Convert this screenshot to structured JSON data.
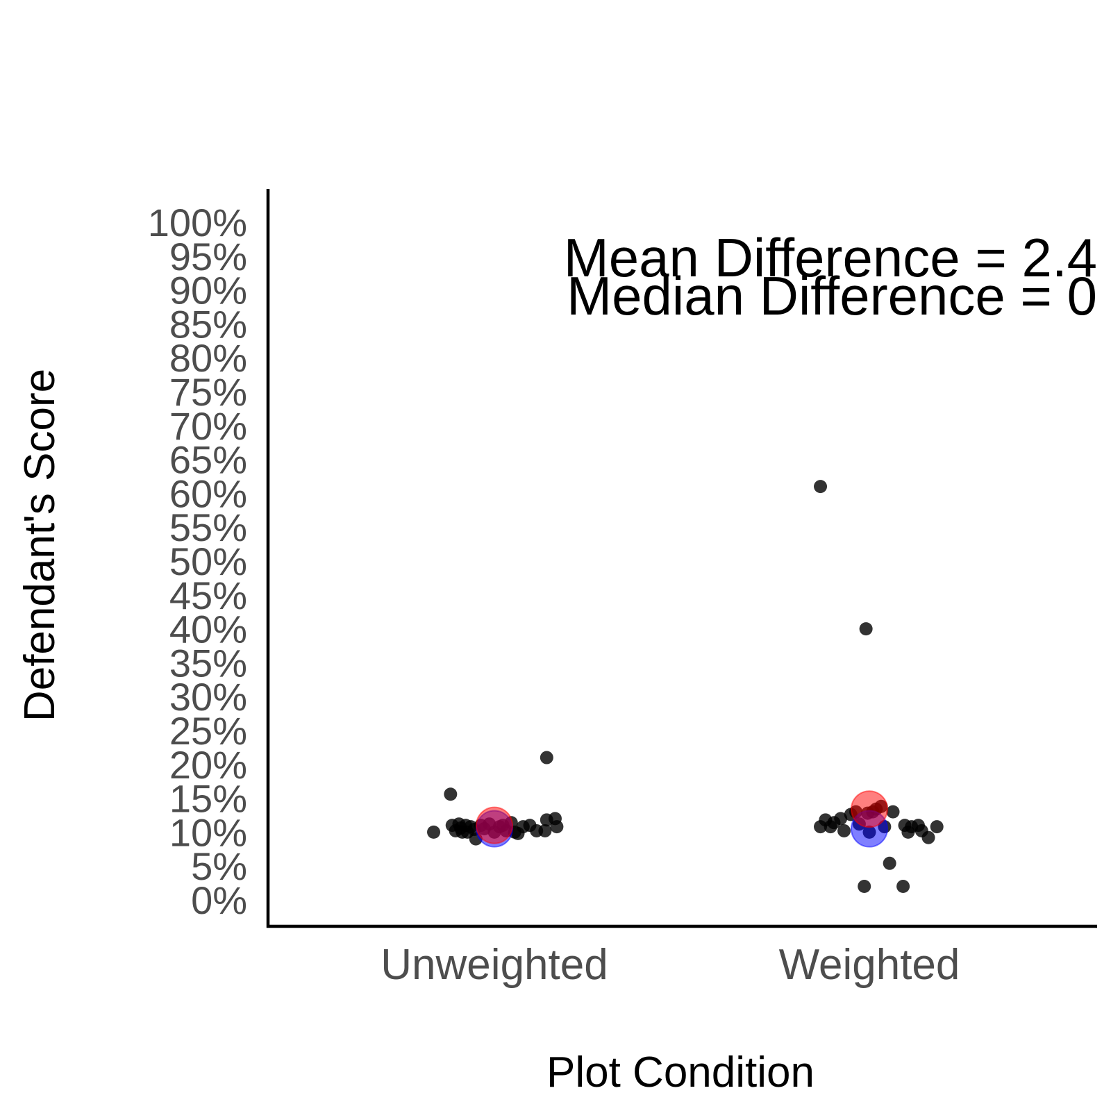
{
  "chart_data": {
    "type": "scatter",
    "title": "",
    "xlabel": "Plot Condition",
    "ylabel": "Defendant's Score",
    "categories": [
      "Unweighted",
      "Weighted"
    ],
    "ylim": [
      0,
      100
    ],
    "y_ticks": [
      0,
      5,
      10,
      15,
      20,
      25,
      30,
      35,
      40,
      45,
      50,
      55,
      60,
      65,
      70,
      75,
      80,
      85,
      90,
      95,
      100
    ],
    "y_tick_suffix": "%",
    "grid": false,
    "legend": "none",
    "points": [
      {
        "category": "Unweighted",
        "jitter": -0.36,
        "y": 10.0
      },
      {
        "category": "Unweighted",
        "jitter": -0.26,
        "y": 15.6
      },
      {
        "category": "Unweighted",
        "jitter": -0.25,
        "y": 11.0
      },
      {
        "category": "Unweighted",
        "jitter": -0.23,
        "y": 10.2
      },
      {
        "category": "Unweighted",
        "jitter": -0.21,
        "y": 11.2
      },
      {
        "category": "Unweighted",
        "jitter": -0.2,
        "y": 10.6
      },
      {
        "category": "Unweighted",
        "jitter": -0.19,
        "y": 10.0
      },
      {
        "category": "Unweighted",
        "jitter": -0.17,
        "y": 11.0
      },
      {
        "category": "Unweighted",
        "jitter": -0.16,
        "y": 10.0
      },
      {
        "category": "Unweighted",
        "jitter": -0.14,
        "y": 10.8
      },
      {
        "category": "Unweighted",
        "jitter": -0.12,
        "y": 10.4
      },
      {
        "category": "Unweighted",
        "jitter": -0.11,
        "y": 9.0
      },
      {
        "category": "Unweighted",
        "jitter": -0.08,
        "y": 11.0
      },
      {
        "category": "Unweighted",
        "jitter": -0.06,
        "y": 10.5
      },
      {
        "category": "Unweighted",
        "jitter": -0.03,
        "y": 11.2
      },
      {
        "category": "Unweighted",
        "jitter": 0.0,
        "y": 10.0
      },
      {
        "category": "Unweighted",
        "jitter": 0.03,
        "y": 10.8
      },
      {
        "category": "Unweighted",
        "jitter": 0.05,
        "y": 11.0
      },
      {
        "category": "Unweighted",
        "jitter": 0.07,
        "y": 10.2
      },
      {
        "category": "Unweighted",
        "jitter": 0.1,
        "y": 11.4
      },
      {
        "category": "Unweighted",
        "jitter": 0.12,
        "y": 10.0
      },
      {
        "category": "Unweighted",
        "jitter": 0.14,
        "y": 9.8
      },
      {
        "category": "Unweighted",
        "jitter": 0.17,
        "y": 10.8
      },
      {
        "category": "Unweighted",
        "jitter": 0.21,
        "y": 11.0
      },
      {
        "category": "Unweighted",
        "jitter": 0.25,
        "y": 10.2
      },
      {
        "category": "Unweighted",
        "jitter": 0.3,
        "y": 10.2
      },
      {
        "category": "Unweighted",
        "jitter": 0.31,
        "y": 21.0
      },
      {
        "category": "Unweighted",
        "jitter": 0.31,
        "y": 11.8
      },
      {
        "category": "Unweighted",
        "jitter": 0.36,
        "y": 12.0
      },
      {
        "category": "Unweighted",
        "jitter": 0.37,
        "y": 10.8
      },
      {
        "category": "Weighted",
        "jitter": -0.29,
        "y": 61.0
      },
      {
        "category": "Weighted",
        "jitter": -0.29,
        "y": 10.8
      },
      {
        "category": "Weighted",
        "jitter": -0.26,
        "y": 11.8
      },
      {
        "category": "Weighted",
        "jitter": -0.23,
        "y": 10.8
      },
      {
        "category": "Weighted",
        "jitter": -0.21,
        "y": 11.4
      },
      {
        "category": "Weighted",
        "jitter": -0.17,
        "y": 12.0
      },
      {
        "category": "Weighted",
        "jitter": -0.15,
        "y": 10.2
      },
      {
        "category": "Weighted",
        "jitter": -0.11,
        "y": 12.6
      },
      {
        "category": "Weighted",
        "jitter": -0.08,
        "y": 13.0
      },
      {
        "category": "Weighted",
        "jitter": -0.06,
        "y": 11.2
      },
      {
        "category": "Weighted",
        "jitter": -0.03,
        "y": 2.0
      },
      {
        "category": "Weighted",
        "jitter": -0.02,
        "y": 40.0
      },
      {
        "category": "Weighted",
        "jitter": -0.01,
        "y": 12.8
      },
      {
        "category": "Weighted",
        "jitter": 0.0,
        "y": 10.0
      },
      {
        "category": "Weighted",
        "jitter": 0.02,
        "y": 13.0
      },
      {
        "category": "Weighted",
        "jitter": 0.04,
        "y": 13.4
      },
      {
        "category": "Weighted",
        "jitter": 0.07,
        "y": 13.8
      },
      {
        "category": "Weighted",
        "jitter": 0.09,
        "y": 10.8
      },
      {
        "category": "Weighted",
        "jitter": 0.12,
        "y": 5.4
      },
      {
        "category": "Weighted",
        "jitter": 0.14,
        "y": 13.0
      },
      {
        "category": "Weighted",
        "jitter": 0.2,
        "y": 2.0
      },
      {
        "category": "Weighted",
        "jitter": 0.21,
        "y": 11.0
      },
      {
        "category": "Weighted",
        "jitter": 0.23,
        "y": 10.0
      },
      {
        "category": "Weighted",
        "jitter": 0.25,
        "y": 10.8
      },
      {
        "category": "Weighted",
        "jitter": 0.29,
        "y": 11.0
      },
      {
        "category": "Weighted",
        "jitter": 0.31,
        "y": 10.2
      },
      {
        "category": "Weighted",
        "jitter": 0.35,
        "y": 9.2
      },
      {
        "category": "Weighted",
        "jitter": 0.4,
        "y": 10.8
      }
    ],
    "summary_markers": [
      {
        "category": "Unweighted",
        "stat": "median",
        "y": 10.5,
        "color": "#0000ff"
      },
      {
        "category": "Unweighted",
        "stat": "mean",
        "y": 11.0,
        "color": "#ff0000"
      },
      {
        "category": "Weighted",
        "stat": "median",
        "y": 10.5,
        "color": "#0000ff"
      },
      {
        "category": "Weighted",
        "stat": "mean",
        "y": 13.4,
        "color": "#ff0000"
      }
    ],
    "annotations": [
      "Mean Difference = 2.4",
      "Median Difference = 0"
    ],
    "colors": {
      "points": "#000000",
      "mean": "#ff0000",
      "median": "#0000ff",
      "axis": "#000000",
      "tick_text": "#4d4d4d"
    }
  }
}
